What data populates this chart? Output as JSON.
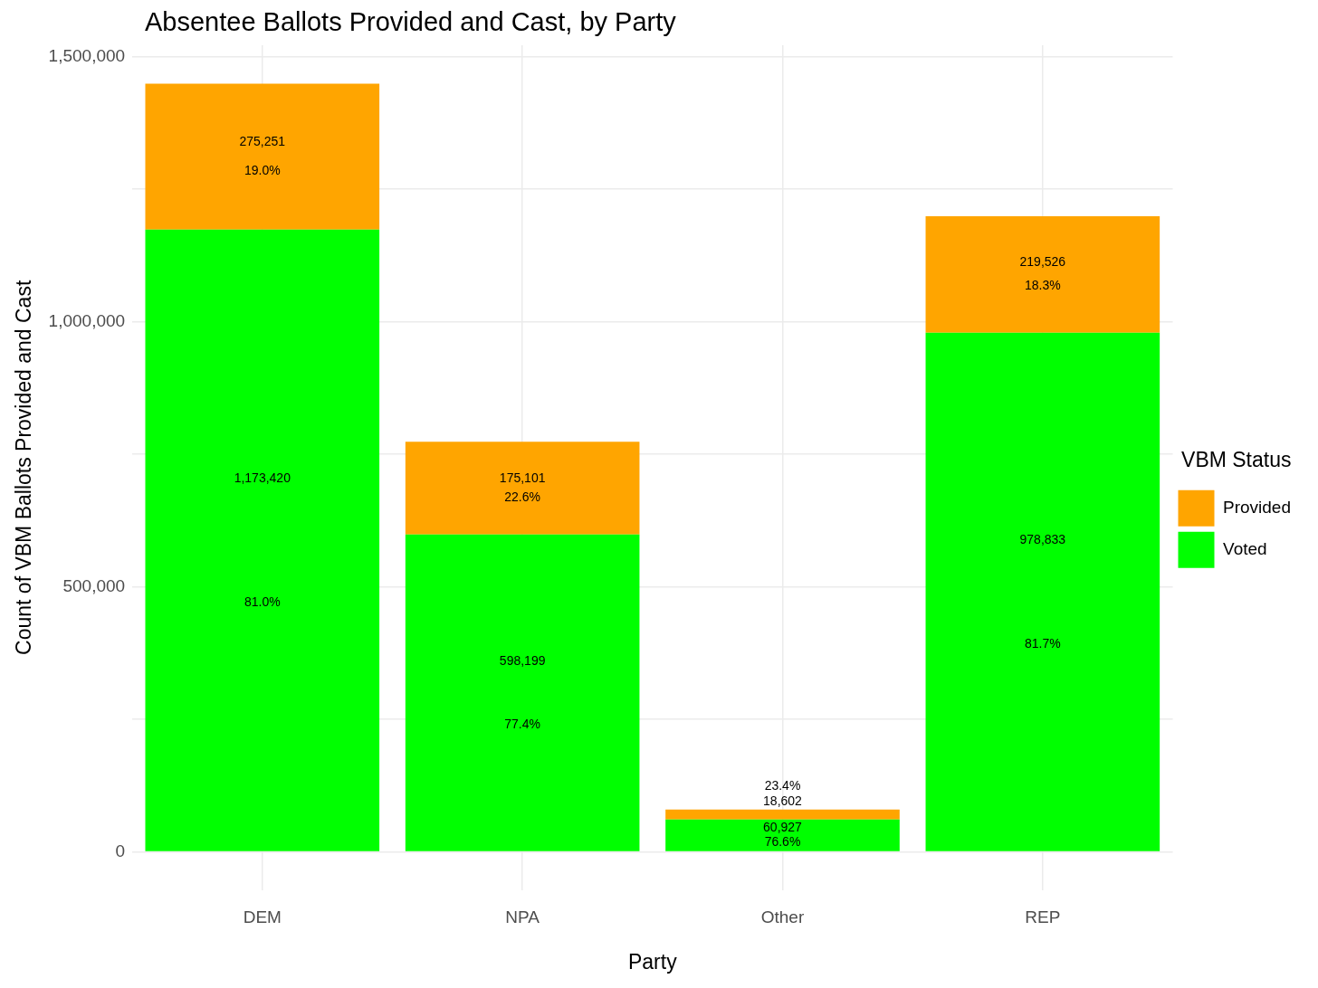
{
  "chart_data": {
    "type": "bar",
    "title": "Absentee Ballots Provided and Cast, by Party",
    "xlabel": "Party",
    "ylabel": "Count of VBM Ballots Provided and Cast",
    "legend_title": "VBM Status",
    "categories": [
      "DEM",
      "NPA",
      "Other",
      "REP"
    ],
    "series": [
      {
        "name": "Voted",
        "color": "#00ff00",
        "values": [
          1173420,
          598199,
          60927,
          978833
        ],
        "value_labels": [
          "1,173,420",
          "598,199",
          "60,927",
          "978,833"
        ]
      },
      {
        "name": "Provided",
        "color": "#ffa500",
        "values": [
          275251,
          175101,
          18602,
          219526
        ],
        "value_labels": [
          "275,251",
          "175,101",
          "18,602",
          "219,526"
        ]
      }
    ],
    "annotations": [
      "81.0%",
      "77.4%",
      "76.6%",
      "81.7%",
      "19.0%",
      "22.6%",
      "23.4%",
      "18.3%"
    ],
    "stacked": true,
    "ylim": [
      -72000,
      1521000
    ],
    "yticks": [
      0,
      {
        "value": 250000,
        "label": null
      },
      {
        "value": 500000,
        "label": "500,000"
      },
      {
        "value": 750000,
        "label": null
      },
      {
        "value": 1000000,
        "label": "1,000,000"
      },
      {
        "value": 1250000,
        "label": null
      },
      {
        "value": 1500000,
        "label": "1,500,000"
      }
    ],
    "grid": true,
    "legend": "right"
  }
}
